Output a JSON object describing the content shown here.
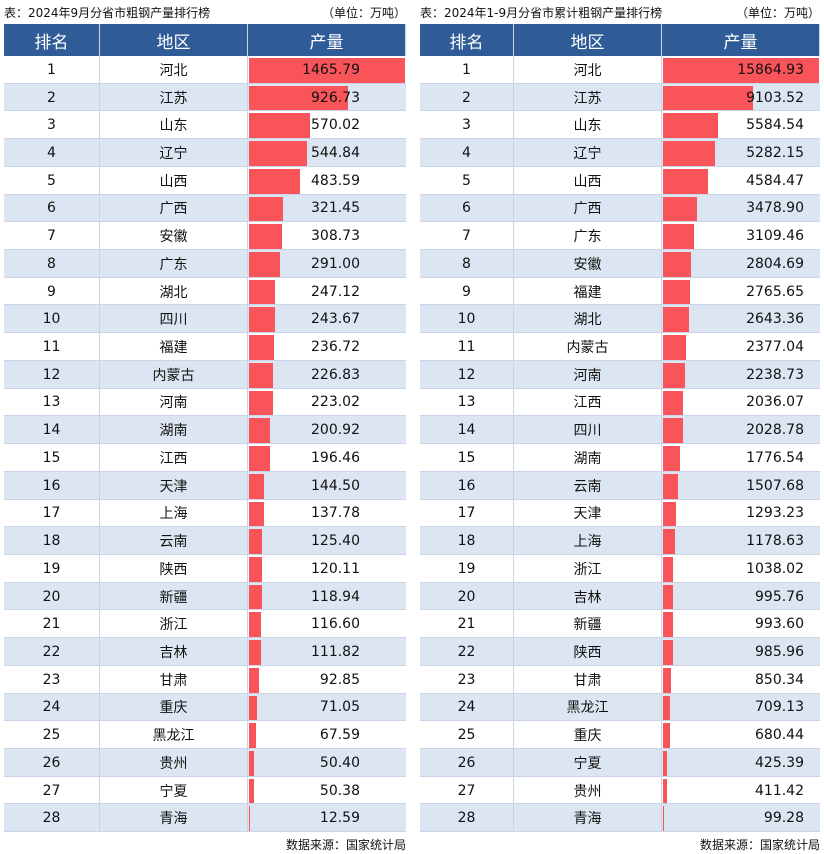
{
  "tables": [
    {
      "title": "表：2024年9月分省市粗钢产量排行榜",
      "unit": "（单位：万吨）",
      "headers": [
        "排名",
        "地区",
        "产量"
      ],
      "rows": [
        [
          "1",
          "河北",
          "1465.79"
        ],
        [
          "2",
          "江苏",
          "926.73"
        ],
        [
          "3",
          "山东",
          "570.02"
        ],
        [
          "4",
          "辽宁",
          "544.84"
        ],
        [
          "5",
          "山西",
          "483.59"
        ],
        [
          "6",
          "广西",
          "321.45"
        ],
        [
          "7",
          "安徽",
          "308.73"
        ],
        [
          "8",
          "广东",
          "291.00"
        ],
        [
          "9",
          "湖北",
          "247.12"
        ],
        [
          "10",
          "四川",
          "243.67"
        ],
        [
          "11",
          "福建",
          "236.72"
        ],
        [
          "12",
          "内蒙古",
          "226.83"
        ],
        [
          "13",
          "河南",
          "223.02"
        ],
        [
          "14",
          "湖南",
          "200.92"
        ],
        [
          "15",
          "江西",
          "196.46"
        ],
        [
          "16",
          "天津",
          "144.50"
        ],
        [
          "17",
          "上海",
          "137.78"
        ],
        [
          "18",
          "云南",
          "125.40"
        ],
        [
          "19",
          "陕西",
          "120.11"
        ],
        [
          "20",
          "新疆",
          "118.94"
        ],
        [
          "21",
          "浙江",
          "116.60"
        ],
        [
          "22",
          "吉林",
          "111.82"
        ],
        [
          "23",
          "甘肃",
          "92.85"
        ],
        [
          "24",
          "重庆",
          "71.05"
        ],
        [
          "25",
          "黑龙江",
          "67.59"
        ],
        [
          "26",
          "贵州",
          "50.40"
        ],
        [
          "27",
          "宁夏",
          "50.38"
        ],
        [
          "28",
          "青海",
          "12.59"
        ]
      ],
      "source": "数据来源：国家统计局"
    },
    {
      "title": "表：2024年1-9月分省市累计粗钢产量排行榜",
      "unit": "（单位：万吨）",
      "headers": [
        "排名",
        "地区",
        "产量"
      ],
      "rows": [
        [
          "1",
          "河北",
          "15864.93"
        ],
        [
          "2",
          "江苏",
          "9103.52"
        ],
        [
          "3",
          "山东",
          "5584.54"
        ],
        [
          "4",
          "辽宁",
          "5282.15"
        ],
        [
          "5",
          "山西",
          "4584.47"
        ],
        [
          "6",
          "广西",
          "3478.90"
        ],
        [
          "7",
          "广东",
          "3109.46"
        ],
        [
          "8",
          "安徽",
          "2804.69"
        ],
        [
          "9",
          "福建",
          "2765.65"
        ],
        [
          "10",
          "湖北",
          "2643.36"
        ],
        [
          "11",
          "内蒙古",
          "2377.04"
        ],
        [
          "12",
          "河南",
          "2238.73"
        ],
        [
          "13",
          "江西",
          "2036.07"
        ],
        [
          "14",
          "四川",
          "2028.78"
        ],
        [
          "15",
          "湖南",
          "1776.54"
        ],
        [
          "16",
          "云南",
          "1507.68"
        ],
        [
          "17",
          "天津",
          "1293.23"
        ],
        [
          "18",
          "上海",
          "1178.63"
        ],
        [
          "19",
          "浙江",
          "1038.02"
        ],
        [
          "20",
          "吉林",
          "995.76"
        ],
        [
          "21",
          "新疆",
          "993.60"
        ],
        [
          "22",
          "陕西",
          "985.96"
        ],
        [
          "23",
          "甘肃",
          "850.34"
        ],
        [
          "24",
          "黑龙江",
          "709.13"
        ],
        [
          "25",
          "重庆",
          "680.44"
        ],
        [
          "26",
          "宁夏",
          "425.39"
        ],
        [
          "27",
          "贵州",
          "411.42"
        ],
        [
          "28",
          "青海",
          "99.28"
        ]
      ],
      "source": "数据来源：国家统计局"
    }
  ]
}
